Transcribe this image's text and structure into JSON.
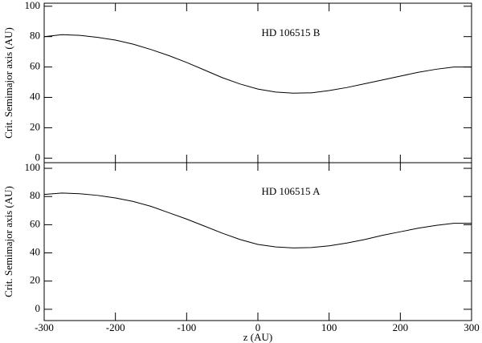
{
  "chart_data": [
    {
      "type": "line",
      "annotation": "HD 106515 B",
      "ylabel": "Crit. Semimajor axis (AU)",
      "x": [
        -300,
        -275,
        -250,
        -225,
        -200,
        -175,
        -150,
        -125,
        -100,
        -75,
        -50,
        -25,
        0,
        25,
        50,
        75,
        100,
        125,
        150,
        175,
        200,
        225,
        250,
        275,
        300
      ],
      "series": [
        {
          "color": "#000000",
          "values": [
            80,
            81.3,
            80.8,
            79.5,
            77.7,
            75,
            71.5,
            67.5,
            63,
            58,
            53,
            48.8,
            45.5,
            43.5,
            42.8,
            43,
            44.5,
            46.5,
            49,
            51.5,
            54,
            56.5,
            58.5,
            60,
            60
          ]
        }
      ],
      "xlim": [
        -300,
        300
      ],
      "ylim": [
        -3,
        102
      ],
      "yticks": [
        0,
        20,
        40,
        60,
        80,
        100
      ]
    },
    {
      "type": "line",
      "annotation": "HD 106515 A",
      "ylabel": "Crit. Semimajor axis (AU)",
      "xlabel": "z (AU)",
      "x": [
        -300,
        -275,
        -250,
        -225,
        -200,
        -175,
        -150,
        -125,
        -100,
        -75,
        -50,
        -25,
        0,
        25,
        50,
        75,
        100,
        125,
        150,
        175,
        200,
        225,
        250,
        275,
        300
      ],
      "series": [
        {
          "color": "#000000",
          "values": [
            81.5,
            82.5,
            82,
            80.8,
            79,
            76.5,
            73,
            68.5,
            64,
            59,
            54,
            49.5,
            46,
            44.2,
            43.5,
            43.8,
            45,
            47,
            49.5,
            52.5,
            55,
            57.5,
            59.5,
            61,
            61
          ]
        }
      ],
      "xlim": [
        -300,
        300
      ],
      "ylim": [
        -8,
        104
      ],
      "xticks": [
        -300,
        -200,
        -100,
        0,
        100,
        200,
        300
      ],
      "yticks": [
        0,
        20,
        40,
        60,
        80,
        100
      ]
    }
  ]
}
